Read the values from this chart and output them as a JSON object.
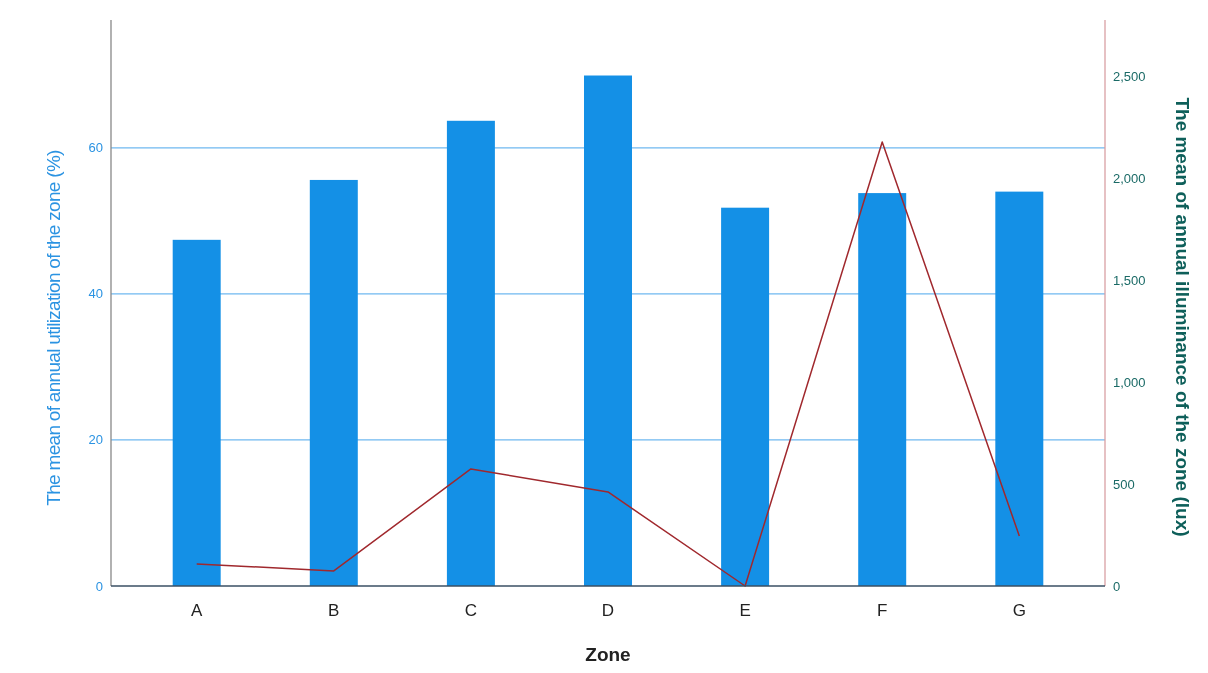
{
  "chart_data": {
    "type": "bar",
    "xlabel": "Zone",
    "ylabel": "The mean of annual utilization of the zone (%)",
    "y2label": "The mean of annual illuminance of the zone (lux)",
    "categories": [
      "A",
      "B",
      "C",
      "D",
      "E",
      "F",
      "G"
    ],
    "series": [
      {
        "color": "#1490e6",
        "values": [
          47.4,
          55.6,
          63.7,
          69.9,
          51.8,
          53.8,
          54.0
        ]
      },
      {
        "type": "line",
        "axis": "y2",
        "color": "#a0282d",
        "values": [
          108,
          74,
          574,
          461,
          0,
          2177,
          245
        ]
      }
    ],
    "ylim": [
      0,
      77.5
    ],
    "yticks": [
      0,
      20,
      40,
      60
    ],
    "y2lim": [
      0,
      2775
    ],
    "y2ticks": [
      0,
      {
        "value": 500,
        "label": "500"
      },
      {
        "value": 1000,
        "label": "1,000"
      },
      {
        "value": 1500,
        "label": "1,500"
      },
      {
        "value": 2000,
        "label": "2,000"
      },
      {
        "value": 2500,
        "label": "2,500"
      }
    ],
    "grid": "y",
    "marker": "none",
    "line_style": "solid"
  }
}
